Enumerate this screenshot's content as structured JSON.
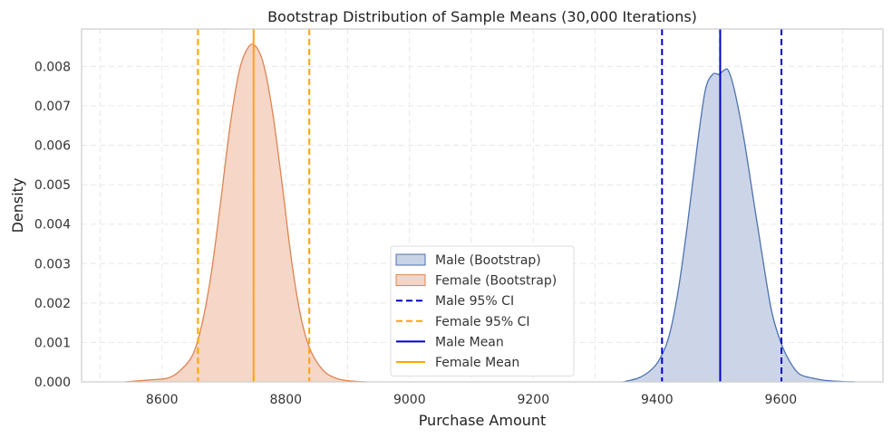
{
  "chart_data": {
    "type": "area",
    "title": "Bootstrap Distribution of Sample Means (30,000 Iterations)",
    "xlabel": "Purchase Amount",
    "ylabel": "Density",
    "xlim": [
      8470,
      9765
    ],
    "ylim": [
      0,
      0.00895
    ],
    "xticks": [
      8600,
      8800,
      9000,
      9200,
      9400,
      9600
    ],
    "yticks": [
      0.0,
      0.001,
      0.002,
      0.003,
      0.004,
      0.005,
      0.006,
      0.007,
      0.008
    ],
    "ytick_labels": [
      "0.000",
      "0.001",
      "0.002",
      "0.003",
      "0.004",
      "0.005",
      "0.006",
      "0.007",
      "0.008"
    ],
    "grid": true,
    "legend_position": "lower-center",
    "series": [
      {
        "name": "Male (Bootstrap)",
        "kind": "kde",
        "color": "#4c72b0",
        "fill": "#c9d3e6",
        "x": [
          9345,
          9370,
          9390,
          9405,
          9420,
          9435,
          9450,
          9465,
          9478,
          9490,
          9500,
          9508,
          9515,
          9525,
          9540,
          9555,
          9570,
          9585,
          9600,
          9615,
          9630,
          9650,
          9670,
          9700,
          9720
        ],
        "y": [
          0.0,
          0.0001,
          0.0003,
          0.0006,
          0.0012,
          0.0024,
          0.0041,
          0.006,
          0.0074,
          0.0078,
          0.0078,
          0.0079,
          0.0079,
          0.0074,
          0.0062,
          0.0047,
          0.0032,
          0.0018,
          0.001,
          0.0005,
          0.0002,
          0.0001,
          4e-05,
          1e-05,
          0.0
        ]
      },
      {
        "name": "Female (Bootstrap)",
        "kind": "kde",
        "color": "#dd8452",
        "fill": "#f4d4c4",
        "x": [
          8540,
          8580,
          8610,
          8630,
          8650,
          8665,
          8680,
          8695,
          8710,
          8725,
          8740,
          8752,
          8765,
          8780,
          8795,
          8810,
          8825,
          8840,
          8860,
          8880,
          8900,
          8930
        ],
        "y": [
          0.0,
          5e-05,
          0.0001,
          0.0003,
          0.0007,
          0.0015,
          0.0028,
          0.0046,
          0.0065,
          0.0079,
          0.0085,
          0.0085,
          0.008,
          0.0067,
          0.0049,
          0.003,
          0.0016,
          0.0008,
          0.0003,
          0.0001,
          3e-05,
          0.0
        ]
      }
    ],
    "lines": [
      {
        "name": "Male 95% CI",
        "style": "dashed",
        "color": "#0000cc",
        "x": [
          9408,
          9601
        ],
        "legend": true
      },
      {
        "name": "Female 95% CI",
        "style": "dashed",
        "color": "#ffa500",
        "x": [
          8658,
          8838
        ],
        "legend": true
      },
      {
        "name": "Male Mean",
        "style": "solid",
        "color": "#0000cc",
        "x": [
          9502
        ],
        "legend": true
      },
      {
        "name": "Female Mean",
        "style": "solid",
        "color": "#ffa500",
        "x": [
          8748
        ],
        "legend": true
      }
    ]
  }
}
